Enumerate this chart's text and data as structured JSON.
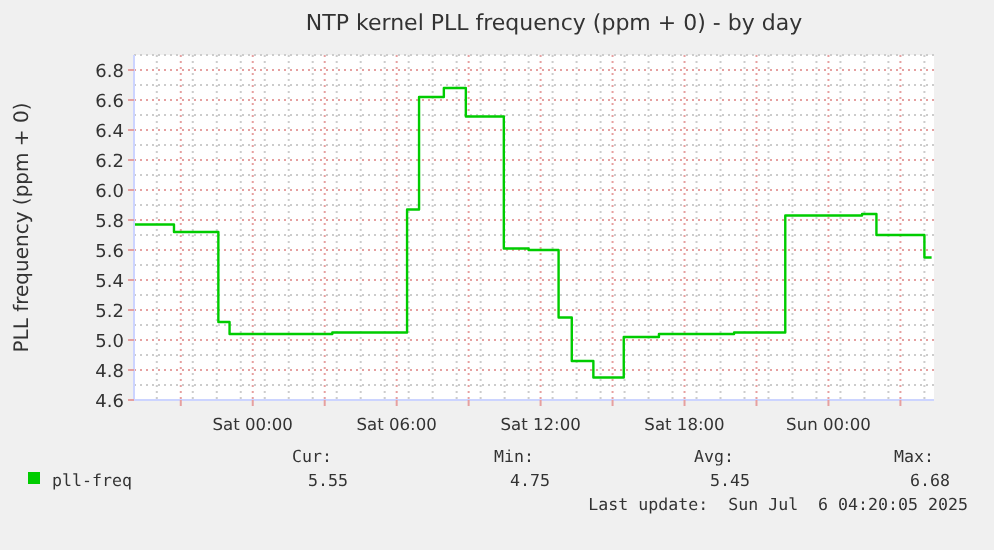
{
  "chart_data": {
    "type": "step",
    "title": "NTP kernel PLL frequency (ppm + 0) - by day",
    "ylabel": "PLL frequency (ppm + 0)",
    "x": [
      "2025-07-04T19:04",
      "2025-07-04T20:43",
      "2025-07-04T22:34",
      "2025-07-04T23:02",
      "2025-07-05T03:19",
      "2025-07-05T06:26",
      "2025-07-05T06:56",
      "2025-07-05T07:58",
      "2025-07-05T08:53",
      "2025-07-05T10:28",
      "2025-07-05T11:30",
      "2025-07-05T12:45",
      "2025-07-05T13:18",
      "2025-07-05T14:12",
      "2025-07-05T15:28",
      "2025-07-05T16:56",
      "2025-07-05T20:04",
      "2025-07-05T22:12",
      "2025-07-06T01:24",
      "2025-07-06T02:00",
      "2025-07-06T04:00",
      "2025-07-06T04:18"
    ],
    "series": [
      {
        "name": "pll-freq",
        "color": "#00cc00",
        "values": [
          5.77,
          5.72,
          5.12,
          5.04,
          5.05,
          5.87,
          6.62,
          6.68,
          6.49,
          5.61,
          5.6,
          5.15,
          4.86,
          4.75,
          5.02,
          5.04,
          5.05,
          5.83,
          5.84,
          5.7,
          5.55,
          5.55
        ]
      }
    ],
    "xlim": [
      "2025-07-04T19:03",
      "2025-07-06T04:24"
    ],
    "xticks": [
      {
        "value": "2025-07-04T21:00",
        "label": null
      },
      {
        "value": "2025-07-05T00:00",
        "label": "Sat 00:00"
      },
      {
        "value": "2025-07-05T03:00",
        "label": null
      },
      {
        "value": "2025-07-05T06:00",
        "label": "Sat 06:00"
      },
      {
        "value": "2025-07-05T09:00",
        "label": null
      },
      {
        "value": "2025-07-05T12:00",
        "label": "Sat 12:00"
      },
      {
        "value": "2025-07-05T15:00",
        "label": null
      },
      {
        "value": "2025-07-05T18:00",
        "label": "Sat 18:00"
      },
      {
        "value": "2025-07-05T21:00",
        "label": null
      },
      {
        "value": "2025-07-06T00:00",
        "label": "Sun 00:00"
      },
      {
        "value": "2025-07-06T03:00",
        "label": null
      }
    ],
    "ylim": [
      4.6,
      6.9
    ],
    "yticks": [
      {
        "value": 4.6,
        "label": "4.6"
      },
      {
        "value": 4.8,
        "label": "4.8"
      },
      {
        "value": 5.0,
        "label": "5.0"
      },
      {
        "value": 5.2,
        "label": "5.2"
      },
      {
        "value": 5.4,
        "label": "5.4"
      },
      {
        "value": 5.6,
        "label": "5.6"
      },
      {
        "value": 5.8,
        "label": "5.8"
      },
      {
        "value": 6.0,
        "label": "6.0"
      },
      {
        "value": 6.2,
        "label": "6.2"
      },
      {
        "value": 6.4,
        "label": "6.4"
      },
      {
        "value": 6.6,
        "label": "6.6"
      },
      {
        "value": 6.8,
        "label": "6.8"
      }
    ],
    "grid": true,
    "legend": "bottom left",
    "annotations": [
      "Cur:",
      "Min:",
      "Avg:",
      "Max:",
      "5.55",
      "4.75",
      "5.45",
      "6.68",
      "Last update:  Sun Jul  6 04:20:05 2025"
    ]
  }
}
